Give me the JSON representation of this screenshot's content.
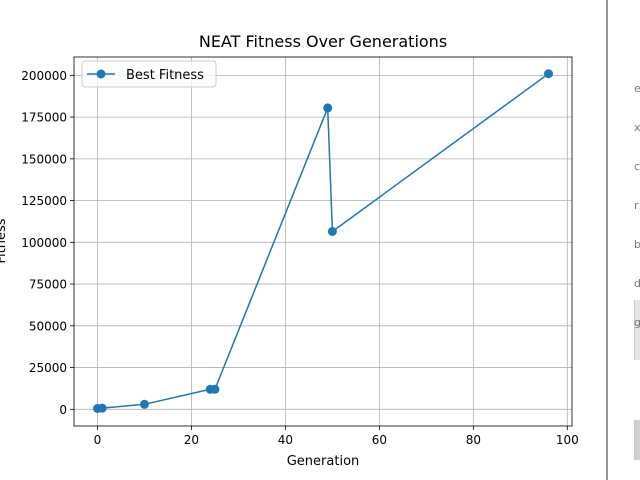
{
  "chart_data": {
    "type": "line",
    "title": "NEAT Fitness Over Generations",
    "xlabel": "Generation",
    "ylabel": "Fitness",
    "xlim": [
      -5,
      101
    ],
    "ylim": [
      -10000,
      211000
    ],
    "xticks": [
      0,
      20,
      40,
      60,
      80,
      100
    ],
    "yticks": [
      0,
      25000,
      50000,
      75000,
      100000,
      125000,
      150000,
      175000,
      200000
    ],
    "grid": true,
    "legend_position": "top-left",
    "series": [
      {
        "name": "Best Fitness",
        "color": "#1f77b4",
        "marker": "circle",
        "x": [
          0,
          1,
          10,
          24,
          25,
          49,
          50,
          96
        ],
        "y": [
          500,
          700,
          3000,
          12000,
          12000,
          180500,
          106500,
          201000
        ]
      }
    ]
  },
  "sidebar_edge": {
    "glyphs": [
      "e",
      "x",
      "c",
      "r",
      "b",
      "d",
      "g"
    ]
  }
}
